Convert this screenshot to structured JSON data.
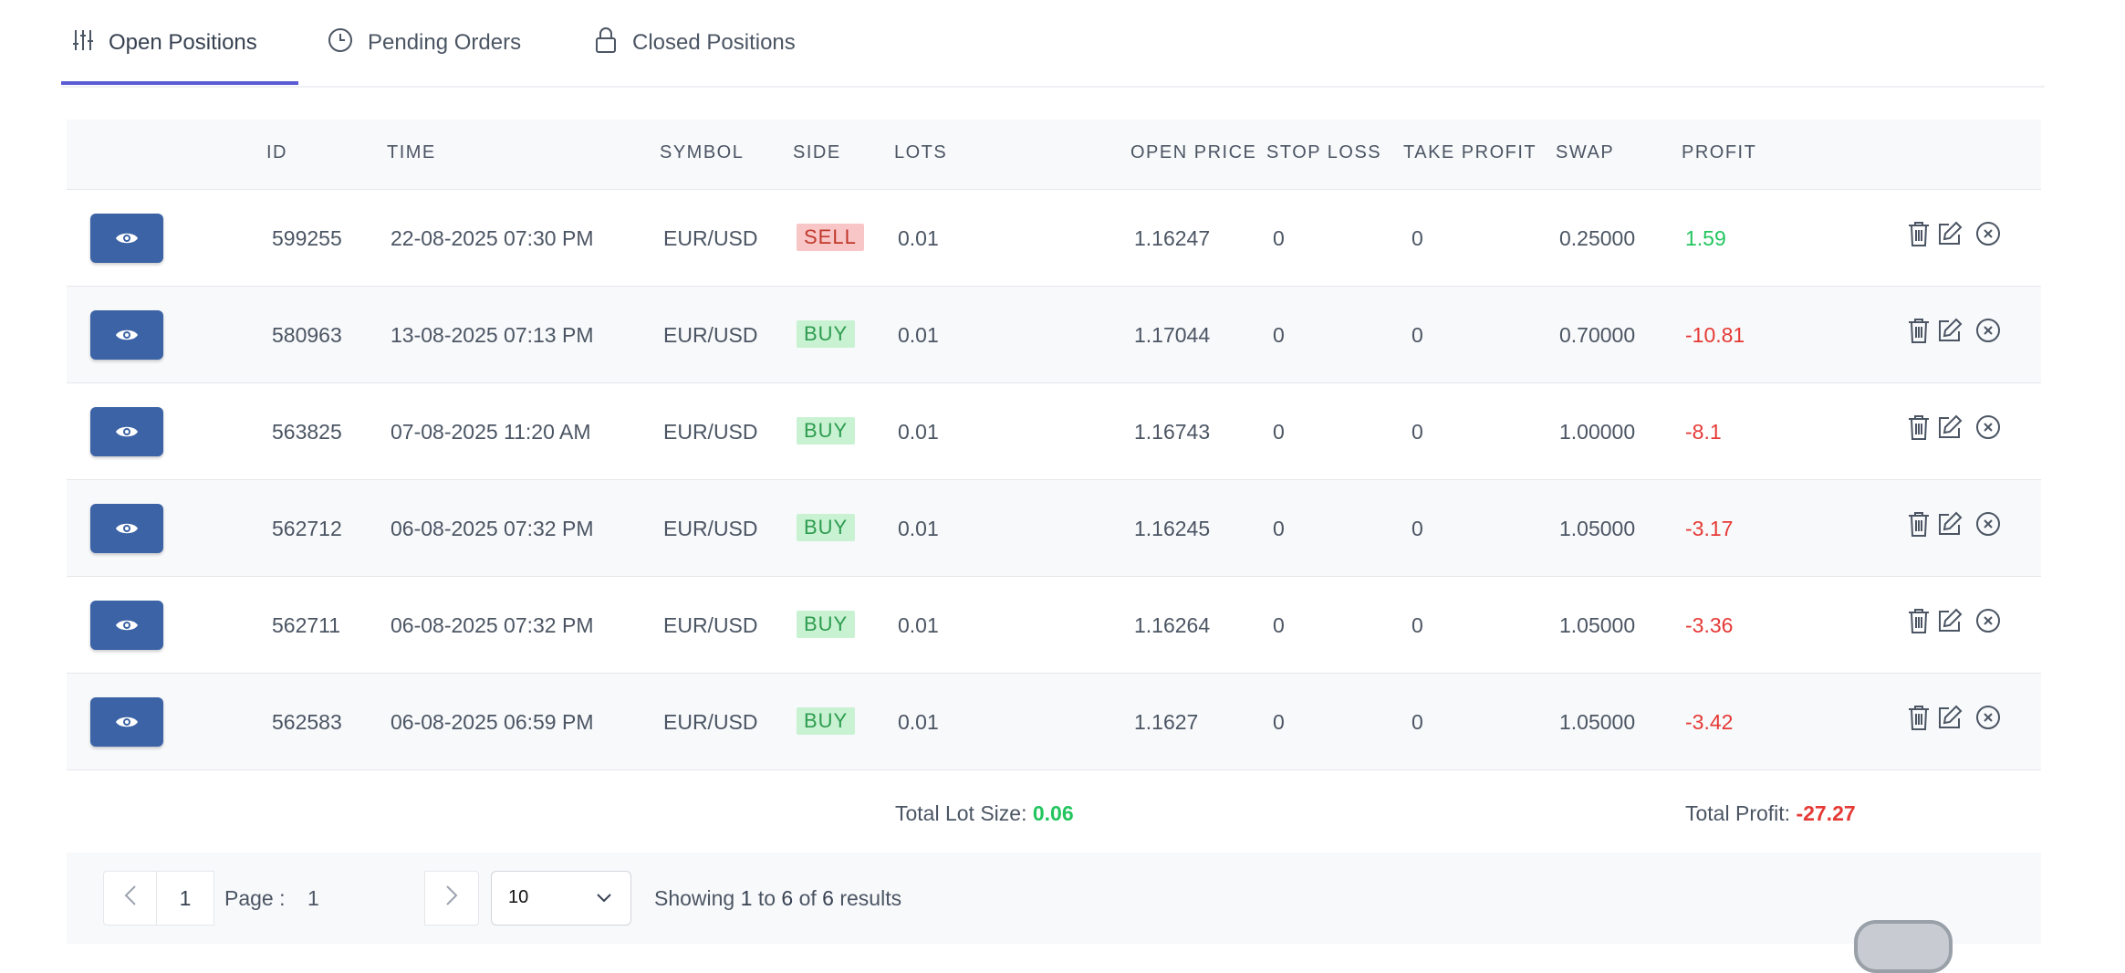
{
  "tabs": [
    {
      "label": "Open Positions",
      "icon": "sliders-icon",
      "active": true
    },
    {
      "label": "Pending Orders",
      "icon": "clock-icon",
      "active": false
    },
    {
      "label": "Closed Positions",
      "icon": "lock-icon",
      "active": false
    }
  ],
  "table": {
    "headers": [
      "ID",
      "TIME",
      "SYMBOL",
      "SIDE",
      "LOTS",
      "OPEN PRICE",
      "STOP LOSS",
      "TAKE PROFIT",
      "SWAP",
      "PROFIT"
    ],
    "rows": [
      {
        "id": "599255",
        "time": "22-08-2025 07:30 PM",
        "symbol": "EUR/USD",
        "side": "SELL",
        "lots": "0.01",
        "open_price": "1.16247",
        "stop_loss": "0",
        "take_profit": "0",
        "swap": "0.25000",
        "profit": "1.59"
      },
      {
        "id": "580963",
        "time": "13-08-2025 07:13 PM",
        "symbol": "EUR/USD",
        "side": "BUY",
        "lots": "0.01",
        "open_price": "1.17044",
        "stop_loss": "0",
        "take_profit": "0",
        "swap": "0.70000",
        "profit": "-10.81"
      },
      {
        "id": "563825",
        "time": "07-08-2025 11:20 AM",
        "symbol": "EUR/USD",
        "side": "BUY",
        "lots": "0.01",
        "open_price": "1.16743",
        "stop_loss": "0",
        "take_profit": "0",
        "swap": "1.00000",
        "profit": "-8.1"
      },
      {
        "id": "562712",
        "time": "06-08-2025 07:32 PM",
        "symbol": "EUR/USD",
        "side": "BUY",
        "lots": "0.01",
        "open_price": "1.16245",
        "stop_loss": "0",
        "take_profit": "0",
        "swap": "1.05000",
        "profit": "-3.17"
      },
      {
        "id": "562711",
        "time": "06-08-2025 07:32 PM",
        "symbol": "EUR/USD",
        "side": "BUY",
        "lots": "0.01",
        "open_price": "1.16264",
        "stop_loss": "0",
        "take_profit": "0",
        "swap": "1.05000",
        "profit": "-3.36"
      },
      {
        "id": "562583",
        "time": "06-08-2025 06:59 PM",
        "symbol": "EUR/USD",
        "side": "BUY",
        "lots": "0.01",
        "open_price": "1.1627",
        "stop_loss": "0",
        "take_profit": "0",
        "swap": "1.05000",
        "profit": "-3.42"
      }
    ]
  },
  "totals": {
    "lot_label": "Total Lot Size:",
    "lot_value": "0.06",
    "profit_label": "Total Profit:",
    "profit_value": "-27.27"
  },
  "pagination": {
    "current_page": "1",
    "page_label": "Page :",
    "page_value": "1",
    "per_page": "10",
    "showing_prefix": "Showing",
    "from": "1",
    "to_word": "to",
    "to": "6",
    "of_word": "of",
    "total": "6",
    "results_word": "results"
  },
  "colors": {
    "accent": "#5b5bd6",
    "view_button": "#3b63a6",
    "positive": "#22c55e",
    "negative": "#e53935",
    "sell_bg": "#f9c6c8",
    "buy_bg": "#c9f2d3"
  }
}
